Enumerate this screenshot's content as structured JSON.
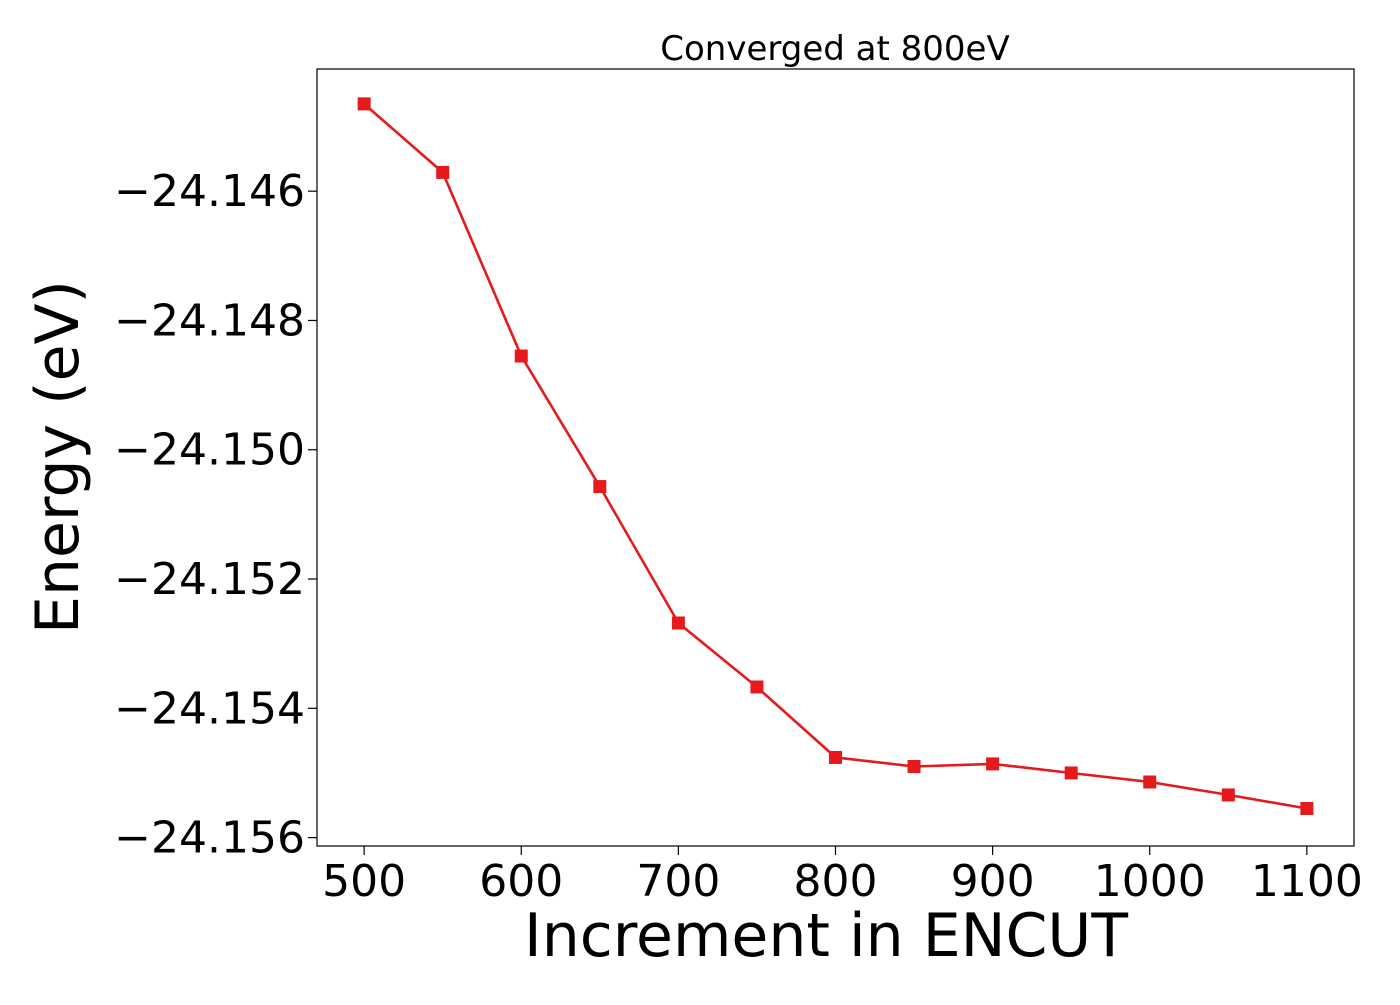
{
  "chart_data": {
    "type": "line",
    "title": "Converged at 800eV",
    "xlabel": "Increment in ENCUT",
    "ylabel": "Energy (eV)",
    "x": [
      500,
      550,
      600,
      650,
      700,
      750,
      800,
      850,
      900,
      950,
      1000,
      1050,
      1100
    ],
    "series": [
      {
        "values": [
          -24.14465,
          -24.14571,
          -24.14855,
          -24.15057,
          -24.15268,
          -24.15367,
          -24.15476,
          -24.1549,
          -24.15486,
          -24.155,
          -24.15514,
          -24.15534,
          -24.15555
        ],
        "color": "#e41a1c",
        "marker": "square"
      }
    ],
    "xticks": [
      500,
      600,
      700,
      800,
      900,
      1000,
      1100
    ],
    "xtick_labels": [
      "500",
      "600",
      "700",
      "800",
      "900",
      "1000",
      "1100"
    ],
    "yticks": [
      -24.146,
      -24.148,
      -24.15,
      -24.152,
      -24.154,
      -24.156
    ],
    "ytick_labels": [
      "−24.146",
      "−24.148",
      "−24.150",
      "−24.152",
      "−24.154",
      "−24.156"
    ],
    "xlim": [
      470,
      1130
    ],
    "ylim": [
      -24.15613,
      -24.14411
    ],
    "grid": false,
    "legend": "none"
  }
}
